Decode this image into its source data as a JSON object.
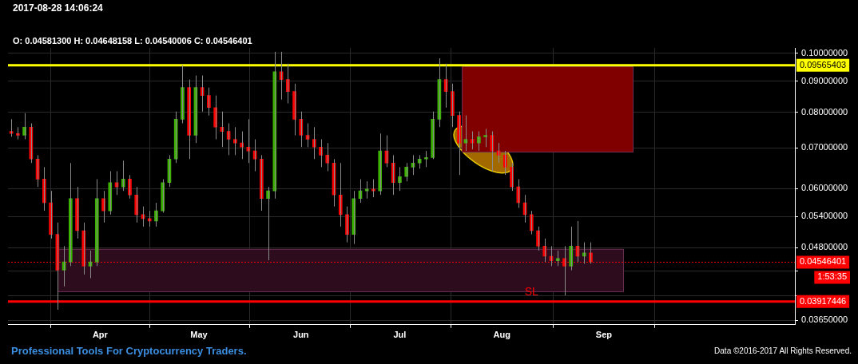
{
  "chart_data": {
    "type": "candlestick",
    "title": "2017-08-28 14:06:24",
    "subtitle": "O: 0.04581300 H: 0.04648158 L: 0.04540006 C: 0.04546401",
    "x": [
      "2017-03-05",
      "2017-03-07",
      "2017-03-09",
      "2017-03-11",
      "2017-03-13",
      "2017-03-15",
      "2017-03-17",
      "2017-03-19",
      "2017-03-21",
      "2017-03-23",
      "2017-03-25",
      "2017-03-27",
      "2017-03-29",
      "2017-03-31",
      "2017-04-02",
      "2017-04-04",
      "2017-04-06",
      "2017-04-08",
      "2017-04-10",
      "2017-04-12",
      "2017-04-14",
      "2017-04-16",
      "2017-04-18",
      "2017-04-20",
      "2017-04-22",
      "2017-04-24",
      "2017-04-26",
      "2017-04-28",
      "2017-04-30",
      "2017-05-02",
      "2017-05-04",
      "2017-05-06",
      "2017-05-08",
      "2017-05-10",
      "2017-05-12",
      "2017-05-14",
      "2017-05-16",
      "2017-05-18",
      "2017-05-20",
      "2017-05-22",
      "2017-05-24",
      "2017-05-26",
      "2017-05-28",
      "2017-05-30",
      "2017-06-01",
      "2017-06-03",
      "2017-06-05",
      "2017-06-07",
      "2017-06-09",
      "2017-06-11",
      "2017-06-13",
      "2017-06-15",
      "2017-06-17",
      "2017-06-19",
      "2017-06-21",
      "2017-06-23",
      "2017-06-25",
      "2017-06-27",
      "2017-06-29",
      "2017-07-01",
      "2017-07-03",
      "2017-07-05",
      "2017-07-07",
      "2017-07-09",
      "2017-07-11",
      "2017-07-13",
      "2017-07-15",
      "2017-07-17",
      "2017-07-19",
      "2017-07-21",
      "2017-07-23",
      "2017-07-25",
      "2017-07-27",
      "2017-07-29",
      "2017-07-31",
      "2017-08-02",
      "2017-08-04",
      "2017-08-06",
      "2017-08-08",
      "2017-08-10",
      "2017-08-12",
      "2017-08-14",
      "2017-08-16",
      "2017-08-18",
      "2017-08-20",
      "2017-08-22",
      "2017-08-24",
      "2017-08-26",
      "2017-08-28"
    ],
    "ohlc": [
      [
        0.0745,
        0.078,
        0.073,
        0.0739
      ],
      [
        0.0739,
        0.0757,
        0.0723,
        0.0734
      ],
      [
        0.0734,
        0.0798,
        0.0723,
        0.0757
      ],
      [
        0.0757,
        0.0768,
        0.0661,
        0.0671
      ],
      [
        0.0671,
        0.0681,
        0.0604,
        0.0622
      ],
      [
        0.0622,
        0.0651,
        0.0552,
        0.0569
      ],
      [
        0.0569,
        0.0595,
        0.0497,
        0.0505
      ],
      [
        0.0505,
        0.0528,
        0.038,
        0.0441
      ],
      [
        0.0441,
        0.0483,
        0.0415,
        0.0455
      ],
      [
        0.0455,
        0.0661,
        0.0448,
        0.0578
      ],
      [
        0.0578,
        0.0604,
        0.0497,
        0.0512
      ],
      [
        0.0512,
        0.0528,
        0.0434,
        0.0448
      ],
      [
        0.0448,
        0.0475,
        0.0428,
        0.0455
      ],
      [
        0.0455,
        0.0622,
        0.0448,
        0.0578
      ],
      [
        0.0578,
        0.0595,
        0.0528,
        0.0552
      ],
      [
        0.0552,
        0.0641,
        0.0544,
        0.0614
      ],
      [
        0.0614,
        0.0641,
        0.0586,
        0.0604
      ],
      [
        0.0604,
        0.0667,
        0.0595,
        0.0622
      ],
      [
        0.0622,
        0.0632,
        0.0578,
        0.0586
      ],
      [
        0.0586,
        0.0604,
        0.0528,
        0.0544
      ],
      [
        0.0544,
        0.0561,
        0.052,
        0.0536
      ],
      [
        0.0536,
        0.0552,
        0.052,
        0.0531
      ],
      [
        0.0531,
        0.0569,
        0.052,
        0.0552
      ],
      [
        0.0552,
        0.0622,
        0.0548,
        0.0614
      ],
      [
        0.0614,
        0.0681,
        0.0604,
        0.0671
      ],
      [
        0.0671,
        0.0803,
        0.0661,
        0.078
      ],
      [
        0.078,
        0.0956,
        0.0768,
        0.0879
      ],
      [
        0.0879,
        0.0906,
        0.0671,
        0.0734
      ],
      [
        0.0734,
        0.092,
        0.0713,
        0.0879
      ],
      [
        0.0879,
        0.092,
        0.0803,
        0.0853
      ],
      [
        0.0853,
        0.0879,
        0.0791,
        0.0815
      ],
      [
        0.0815,
        0.0853,
        0.0723,
        0.0757
      ],
      [
        0.0757,
        0.0803,
        0.0702,
        0.0745
      ],
      [
        0.0745,
        0.0768,
        0.0681,
        0.0723
      ],
      [
        0.0723,
        0.0757,
        0.0681,
        0.0713
      ],
      [
        0.0713,
        0.0745,
        0.0671,
        0.0702
      ],
      [
        0.0702,
        0.078,
        0.0661,
        0.0692
      ],
      [
        0.0692,
        0.0723,
        0.0641,
        0.0671
      ],
      [
        0.0671,
        0.0681,
        0.0552,
        0.0578
      ],
      [
        0.0578,
        0.0604,
        0.0458,
        0.0595
      ],
      [
        0.0595,
        0.1006,
        0.0578,
        0.0933
      ],
      [
        0.0933,
        0.1006,
        0.084,
        0.0906
      ],
      [
        0.0906,
        0.0962,
        0.0828,
        0.0866
      ],
      [
        0.0866,
        0.0892,
        0.0734,
        0.078
      ],
      [
        0.078,
        0.0803,
        0.0702,
        0.0734
      ],
      [
        0.0734,
        0.0768,
        0.0702,
        0.0723
      ],
      [
        0.0723,
        0.0757,
        0.0671,
        0.0702
      ],
      [
        0.0702,
        0.0723,
        0.0651,
        0.0681
      ],
      [
        0.0681,
        0.0713,
        0.0641,
        0.0661
      ],
      [
        0.0661,
        0.0671,
        0.0561,
        0.0586
      ],
      [
        0.0586,
        0.0661,
        0.052,
        0.0544
      ],
      [
        0.0544,
        0.0561,
        0.049,
        0.0505
      ],
      [
        0.0505,
        0.0595,
        0.0487,
        0.0578
      ],
      [
        0.0578,
        0.0622,
        0.0569,
        0.0595
      ],
      [
        0.0595,
        0.0617,
        0.0578,
        0.0599
      ],
      [
        0.0599,
        0.0622,
        0.0581,
        0.0595
      ],
      [
        0.0595,
        0.0739,
        0.0586,
        0.0692
      ],
      [
        0.0692,
        0.0734,
        0.0651,
        0.0661
      ],
      [
        0.0661,
        0.0681,
        0.0586,
        0.0614
      ],
      [
        0.0614,
        0.0651,
        0.0595,
        0.0628
      ],
      [
        0.0628,
        0.0661,
        0.0617,
        0.0651
      ],
      [
        0.0651,
        0.0681,
        0.0632,
        0.0661
      ],
      [
        0.0661,
        0.0681,
        0.0647,
        0.0671
      ],
      [
        0.0671,
        0.0692,
        0.0651,
        0.0675
      ],
      [
        0.0675,
        0.0803,
        0.0671,
        0.078
      ],
      [
        0.078,
        0.0982,
        0.0757,
        0.0906
      ],
      [
        0.0906,
        0.0962,
        0.0815,
        0.0866
      ],
      [
        0.0866,
        0.0892,
        0.0757,
        0.0791
      ],
      [
        0.0791,
        0.0803,
        0.0632,
        0.0713
      ],
      [
        0.0713,
        0.0791,
        0.0692,
        0.0723
      ],
      [
        0.0723,
        0.0745,
        0.0696,
        0.0713
      ],
      [
        0.0713,
        0.0745,
        0.0692,
        0.073
      ],
      [
        0.073,
        0.0752,
        0.0702,
        0.0734
      ],
      [
        0.0734,
        0.0745,
        0.0641,
        0.0692
      ],
      [
        0.0692,
        0.0713,
        0.0661,
        0.0681
      ],
      [
        0.0681,
        0.0692,
        0.0632,
        0.0651
      ],
      [
        0.0651,
        0.0661,
        0.0595,
        0.0604
      ],
      [
        0.0604,
        0.0622,
        0.0558,
        0.0569
      ],
      [
        0.0569,
        0.0586,
        0.0528,
        0.0544
      ],
      [
        0.0544,
        0.0552,
        0.0505,
        0.0512
      ],
      [
        0.0512,
        0.052,
        0.0475,
        0.0483
      ],
      [
        0.0483,
        0.0497,
        0.0455,
        0.0465
      ],
      [
        0.0465,
        0.0483,
        0.0448,
        0.0457
      ],
      [
        0.0457,
        0.0475,
        0.0448,
        0.0461
      ],
      [
        0.0461,
        0.0483,
        0.0401,
        0.0448
      ],
      [
        0.0448,
        0.052,
        0.0441,
        0.0483
      ],
      [
        0.0483,
        0.0531,
        0.0455,
        0.0465
      ],
      [
        0.0465,
        0.049,
        0.0452,
        0.0471
      ],
      [
        0.0471,
        0.049,
        0.0452,
        0.0455
      ]
    ],
    "log": true,
    "grid": true,
    "legend": false,
    "xlim": [
      "2017-03-04",
      "2017-10-29"
    ],
    "xticks": [
      {
        "value": "2017-04-01",
        "label": "Apr"
      },
      {
        "value": "2017-05-01",
        "label": "May"
      },
      {
        "value": "2017-06-01",
        "label": "Jun"
      },
      {
        "value": "2017-07-01",
        "label": "Jul"
      },
      {
        "value": "2017-08-01",
        "label": "Aug"
      },
      {
        "value": "2017-09-01",
        "label": "Sep"
      }
    ],
    "ylim": [
      0.0359,
      0.1021
    ],
    "yticks": [
      {
        "value": 0.1,
        "label": "0.10000000"
      },
      {
        "value": 0.09,
        "label": "0.09000000"
      },
      {
        "value": 0.08,
        "label": "0.08000000"
      },
      {
        "value": 0.07,
        "label": "0.07000000"
      },
      {
        "value": 0.06,
        "label": "0.06000000"
      },
      {
        "value": 0.054,
        "label": "0.05400000"
      },
      {
        "value": 0.048,
        "label": "0.04800000"
      },
      {
        "value": 0.044,
        "label": null
      },
      {
        "value": 0.04,
        "label": null
      },
      {
        "value": 0.0365,
        "label": "0.03650000"
      }
    ],
    "bands": [
      {
        "axis": "y",
        "from": 0.0688,
        "to": 0.0953,
        "color": "#800000"
      },
      {
        "axis": "y",
        "from": 0.0406,
        "to": 0.0478,
        "color": "#2d0c1e"
      }
    ],
    "ref_lines": [
      {
        "axis": "y",
        "value": 0.09565403,
        "label": "0.09565403",
        "color": "#ffff00"
      },
      {
        "axis": "y",
        "value": 0.04546401,
        "label": "0.04546401",
        "color": "#ff0000",
        "line_style": "dotted"
      },
      {
        "axis": "y",
        "value": 0.03917446,
        "label": "0.03917446",
        "color": "#ff0000"
      }
    ],
    "annotations": [
      "Professional Tools For Cryptocurrency Traders.",
      "Data ©2016-2017 All Rights Reserved.",
      "1:53:35",
      {
        "text": "SL",
        "x": "2017-08-10",
        "y": 0.03917446
      }
    ]
  }
}
